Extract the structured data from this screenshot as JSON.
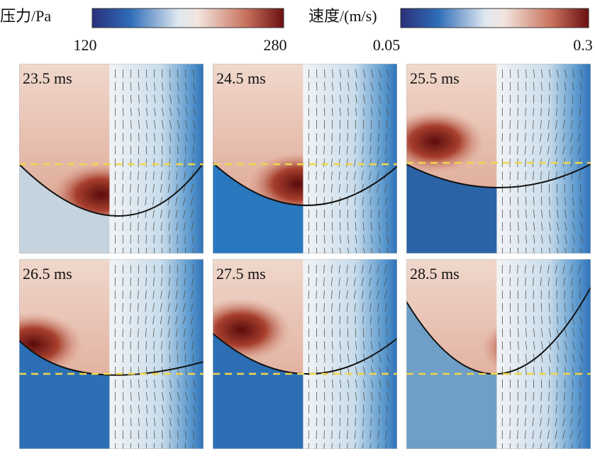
{
  "legend": {
    "pressure": {
      "label": "压力/Pa",
      "min": "120",
      "max": "280"
    },
    "velocity": {
      "label": "速度/(m/s)",
      "min": "0.05",
      "max": "0.3"
    }
  },
  "panels": [
    {
      "label": "23.5 ms"
    },
    {
      "label": "24.5 ms"
    },
    {
      "label": "25.5 ms"
    },
    {
      "label": "26.5 ms"
    },
    {
      "label": "27.5 ms"
    },
    {
      "label": "28.5 ms"
    }
  ]
}
